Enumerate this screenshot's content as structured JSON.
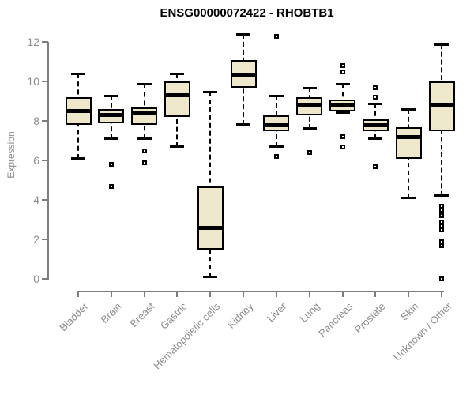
{
  "chart_data": {
    "type": "boxplot",
    "title": "ENSG00000072422 - RHOBTB1",
    "ylabel": "Expression",
    "xlabel": "",
    "ylim": [
      0,
      12
    ],
    "yticks": [
      0,
      2,
      4,
      6,
      8,
      10,
      12
    ],
    "grid": false,
    "legend": "none",
    "categories": [
      "Bladder",
      "Brain",
      "Breast",
      "Gastric",
      "Hematopoietic cells",
      "Kidney",
      "Liver",
      "Lung",
      "Pancreas",
      "Prostate",
      "Skin",
      "Unknown / Other"
    ],
    "series": [
      {
        "name": "Bladder",
        "whisker_low": 6.1,
        "q1": 7.8,
        "median": 8.5,
        "q3": 9.2,
        "whisker_high": 10.4,
        "outliers": []
      },
      {
        "name": "Brain",
        "whisker_low": 7.1,
        "q1": 7.9,
        "median": 8.3,
        "q3": 8.6,
        "whisker_high": 9.3,
        "outliers": [
          5.8,
          4.7
        ]
      },
      {
        "name": "Breast",
        "whisker_low": 7.1,
        "q1": 7.8,
        "median": 8.4,
        "q3": 8.7,
        "whisker_high": 9.9,
        "outliers": [
          6.5,
          5.9
        ]
      },
      {
        "name": "Gastric",
        "whisker_low": 6.7,
        "q1": 8.2,
        "median": 9.3,
        "q3": 10.0,
        "whisker_high": 10.4,
        "outliers": []
      },
      {
        "name": "Hematopoietic cells",
        "whisker_low": 0.1,
        "q1": 1.5,
        "median": 2.6,
        "q3": 4.7,
        "whisker_high": 9.5,
        "outliers": []
      },
      {
        "name": "Kidney",
        "whisker_low": 7.8,
        "q1": 9.7,
        "median": 10.3,
        "q3": 11.1,
        "whisker_high": 12.4,
        "outliers": []
      },
      {
        "name": "Liver",
        "whisker_low": 6.7,
        "q1": 7.5,
        "median": 7.8,
        "q3": 8.3,
        "whisker_high": 9.3,
        "outliers": [
          12.3,
          6.2
        ]
      },
      {
        "name": "Lung",
        "whisker_low": 7.6,
        "q1": 8.3,
        "median": 8.8,
        "q3": 9.2,
        "whisker_high": 9.7,
        "outliers": [
          6.4
        ]
      },
      {
        "name": "Pancreas",
        "whisker_low": 8.4,
        "q1": 8.5,
        "median": 8.8,
        "q3": 9.1,
        "whisker_high": 9.9,
        "outliers": [
          10.8,
          10.5,
          7.2,
          6.7
        ]
      },
      {
        "name": "Prostate",
        "whisker_low": 7.1,
        "q1": 7.5,
        "median": 7.8,
        "q3": 8.1,
        "whisker_high": 8.9,
        "outliers": [
          9.7,
          9.2,
          5.7
        ]
      },
      {
        "name": "Skin",
        "whisker_low": 4.1,
        "q1": 6.1,
        "median": 7.2,
        "q3": 7.7,
        "whisker_high": 8.6,
        "outliers": []
      },
      {
        "name": "Unknown / Other",
        "whisker_low": 4.2,
        "q1": 7.5,
        "median": 8.8,
        "q3": 10.0,
        "whisker_high": 11.9,
        "outliers": [
          3.7,
          3.5,
          3.3,
          3.2,
          2.9,
          2.7,
          2.5,
          1.9,
          1.7,
          0.0
        ]
      }
    ],
    "colors": {
      "box_fill": "#ede7cb",
      "box_stroke": "#000000",
      "median": "#000000",
      "whisker": "#000000",
      "outlier_fill": "#ffffff",
      "axis": "#7d7d7d",
      "tick_label": "#8c8c8c",
      "title": "#000000",
      "background": "#ffffff"
    }
  }
}
